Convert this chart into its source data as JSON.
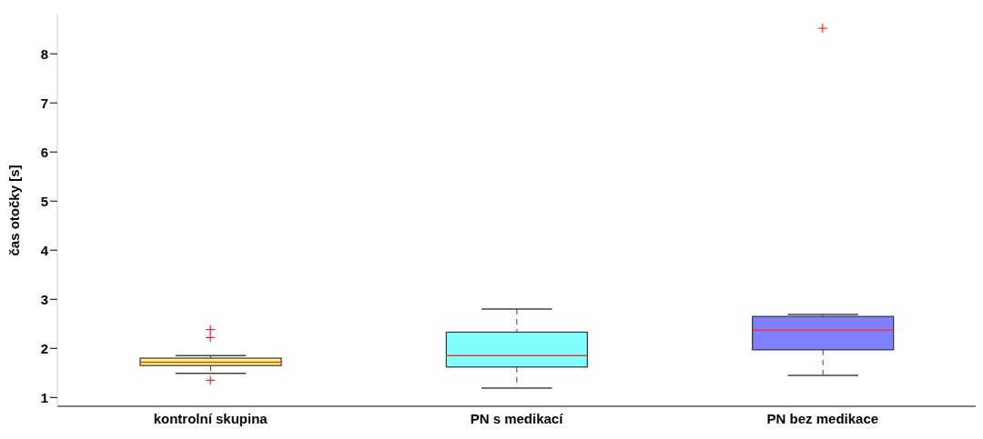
{
  "chart_data": {
    "type": "box",
    "ylabel": "čas otočky [s]",
    "categories": [
      "kontrolní skupina",
      "PN s medikací",
      "PN bez medikace"
    ],
    "colors": [
      "#ffff80",
      "#80ffff",
      "#8080ff"
    ],
    "boxes": [
      {
        "low": 1.49,
        "q1": 1.65,
        "median": 1.72,
        "q3": 1.8,
        "high": 1.85,
        "outliers": [
          2.38,
          2.22,
          1.35
        ]
      },
      {
        "low": 1.19,
        "q1": 1.62,
        "median": 1.85,
        "q3": 2.33,
        "high": 2.8
      },
      {
        "low": 1.45,
        "q1": 1.97,
        "median": 2.37,
        "q3": 2.65,
        "high": 2.69,
        "outliers": [
          8.52
        ]
      }
    ],
    "ylim": [
      0.82,
      8.8
    ],
    "yticks": [
      1,
      2,
      3,
      4,
      5,
      6,
      7,
      8
    ],
    "grid": false
  }
}
